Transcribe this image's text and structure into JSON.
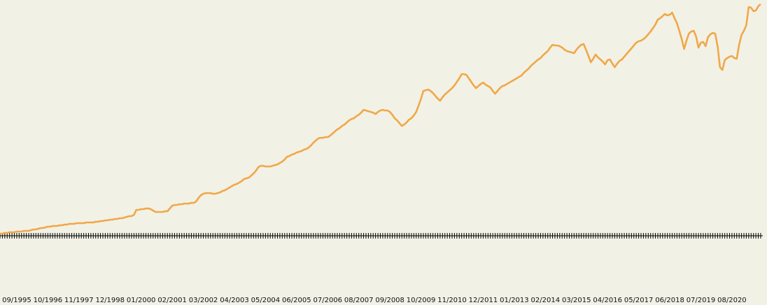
{
  "chart_data": {
    "type": "line",
    "color": "#f0a848",
    "ylim": [
      0,
      336
    ],
    "categories": [
      null,
      null,
      null,
      null,
      null,
      null,
      null,
      "09/1995",
      null,
      null,
      null,
      null,
      null,
      null,
      null,
      null,
      null,
      null,
      null,
      null,
      "10/1996",
      null,
      null,
      null,
      null,
      null,
      null,
      null,
      null,
      null,
      null,
      null,
      null,
      "11/1997",
      null,
      null,
      null,
      null,
      null,
      null,
      null,
      null,
      null,
      null,
      null,
      null,
      "12/1998",
      null,
      null,
      null,
      null,
      null,
      null,
      null,
      null,
      null,
      null,
      null,
      null,
      "01/2000",
      null,
      null,
      null,
      null,
      null,
      null,
      null,
      null,
      null,
      null,
      null,
      null,
      "02/2001",
      null,
      null,
      null,
      null,
      null,
      null,
      null,
      null,
      null,
      null,
      null,
      null,
      "03/2002",
      null,
      null,
      null,
      null,
      null,
      null,
      null,
      null,
      null,
      null,
      null,
      null,
      "04/2003",
      null,
      null,
      null,
      null,
      null,
      null,
      null,
      null,
      null,
      null,
      null,
      null,
      "05/2004",
      null,
      null,
      null,
      null,
      null,
      null,
      null,
      null,
      null,
      null,
      null,
      null,
      "06/2005",
      null,
      null,
      null,
      null,
      null,
      null,
      null,
      null,
      null,
      null,
      null,
      null,
      "07/2006",
      null,
      null,
      null,
      null,
      null,
      null,
      null,
      null,
      null,
      null,
      null,
      null,
      "08/2007",
      null,
      null,
      null,
      null,
      null,
      null,
      null,
      null,
      null,
      null,
      null,
      null,
      "09/2008",
      null,
      null,
      null,
      null,
      null,
      null,
      null,
      null,
      null,
      null,
      null,
      null,
      "10/2009",
      null,
      null,
      null,
      null,
      null,
      null,
      null,
      null,
      null,
      null,
      null,
      null,
      "11/2010",
      null,
      null,
      null,
      null,
      null,
      null,
      null,
      null,
      null,
      null,
      null,
      null,
      "12/2011",
      null,
      null,
      null,
      null,
      null,
      null,
      null,
      null,
      null,
      null,
      null,
      null,
      "01/2013",
      null,
      null,
      null,
      null,
      null,
      null,
      null,
      null,
      null,
      null,
      null,
      null,
      "02/2014",
      null,
      null,
      null,
      null,
      null,
      null,
      null,
      null,
      null,
      null,
      null,
      null,
      "03/2015",
      null,
      null,
      null,
      null,
      null,
      null,
      null,
      null,
      null,
      null,
      null,
      null,
      "04/2016",
      null,
      null,
      null,
      null,
      null,
      null,
      null,
      null,
      null,
      null,
      null,
      null,
      "05/2017",
      null,
      null,
      null,
      null,
      null,
      null,
      null,
      null,
      null,
      null,
      null,
      null,
      "06/2018",
      null,
      null,
      null,
      null,
      null,
      null,
      null,
      null,
      null,
      null,
      null,
      null,
      "07/2019",
      null,
      null,
      null,
      null,
      null,
      null,
      null,
      null,
      null,
      null,
      null,
      null,
      "08/2020",
      null,
      null,
      null,
      null,
      null,
      null,
      null,
      null,
      null,
      null,
      null,
      null
    ],
    "values": [
      2,
      2,
      3,
      3,
      4,
      4,
      4,
      5,
      5,
      5,
      6,
      6,
      6,
      7,
      8,
      8,
      9,
      10,
      10,
      11,
      12,
      12,
      13,
      13,
      13,
      14,
      14,
      15,
      15,
      16,
      16,
      16,
      17,
      17,
      17,
      17,
      18,
      18,
      18,
      18,
      19,
      19,
      20,
      20,
      21,
      21,
      22,
      22,
      23,
      23,
      24,
      24,
      25,
      26,
      27,
      27,
      29,
      36,
      36,
      37,
      37,
      38,
      38,
      37,
      35,
      33,
      33,
      33,
      33,
      34,
      34,
      38,
      42,
      43,
      43,
      44,
      44,
      45,
      45,
      45,
      46,
      46,
      48,
      53,
      57,
      59,
      60,
      60,
      60,
      59,
      59,
      60,
      61,
      63,
      64,
      66,
      68,
      70,
      72,
      73,
      75,
      77,
      80,
      81,
      82,
      85,
      88,
      92,
      97,
      99,
      99,
      98,
      98,
      98,
      99,
      100,
      101,
      103,
      105,
      108,
      112,
      113,
      115,
      116,
      118,
      119,
      120,
      122,
      123,
      125,
      128,
      132,
      135,
      138,
      139,
      139,
      140,
      140,
      142,
      145,
      148,
      151,
      153,
      156,
      158,
      161,
      164,
      166,
      167,
      170,
      172,
      175,
      179,
      178,
      177,
      176,
      175,
      173,
      176,
      178,
      179,
      178,
      178,
      176,
      172,
      167,
      164,
      160,
      156,
      158,
      161,
      165,
      167,
      171,
      176,
      185,
      195,
      206,
      207,
      208,
      206,
      203,
      199,
      195,
      192,
      197,
      201,
      204,
      207,
      210,
      214,
      219,
      224,
      230,
      230,
      229,
      224,
      219,
      214,
      210,
      213,
      216,
      218,
      215,
      213,
      211,
      206,
      202,
      206,
      210,
      213,
      214,
      216,
      218,
      220,
      222,
      224,
      226,
      228,
      232,
      235,
      238,
      242,
      245,
      248,
      251,
      253,
      257,
      260,
      263,
      268,
      272,
      271,
      271,
      270,
      268,
      265,
      263,
      262,
      261,
      260,
      265,
      269,
      272,
      273,
      265,
      256,
      247,
      252,
      258,
      254,
      251,
      248,
      244,
      250,
      251,
      245,
      240,
      245,
      249,
      251,
      255,
      259,
      263,
      267,
      271,
      275,
      277,
      278,
      280,
      283,
      287,
      291,
      296,
      301,
      308,
      310,
      313,
      316,
      314,
      315,
      318,
      310,
      303,
      292,
      280,
      266,
      278,
      288,
      291,
      292,
      284,
      268,
      275,
      276,
      270,
      283,
      287,
      289,
      288,
      270,
      240,
      236,
      250,
      253,
      255,
      256,
      253,
      252,
      272,
      286,
      292,
      300,
      326,
      325,
      320,
      321,
      327,
      330
    ]
  }
}
